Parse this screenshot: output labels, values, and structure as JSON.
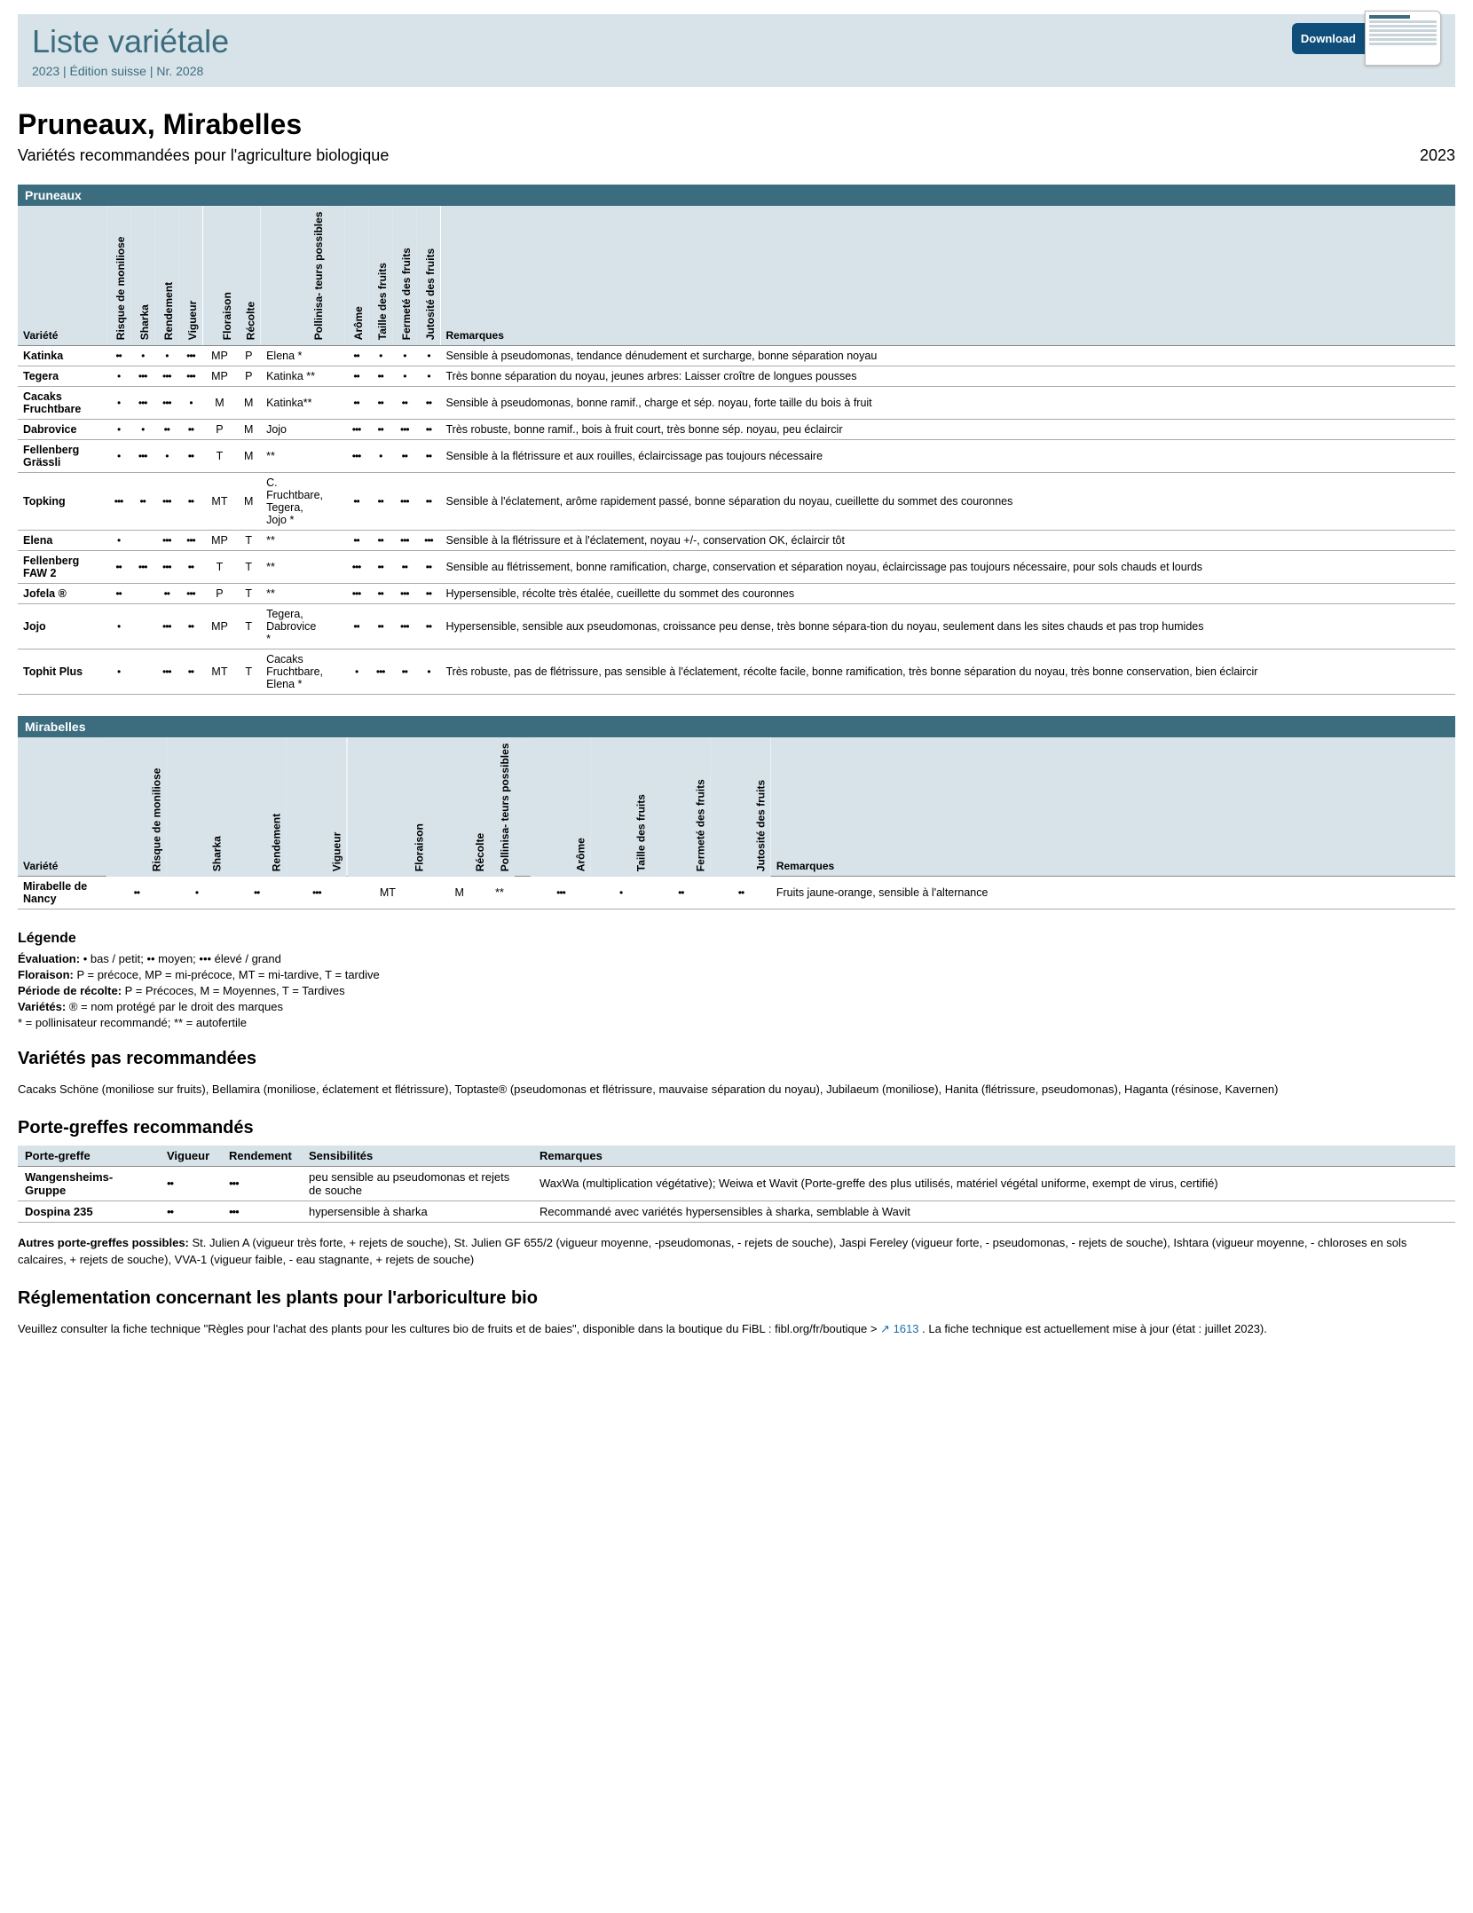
{
  "colors": {
    "band": "#3b6d7e",
    "header_bg": "#d7e3e9",
    "link": "#1a6ea8"
  },
  "header": {
    "title": "Liste variétale",
    "subtitle": "2023 | Édition suisse | Nr. 2028",
    "download_label": "Download"
  },
  "page": {
    "title": "Pruneaux, Mirabelles",
    "subtitle": "Variétés recommandées pour l'agriculture biologique",
    "year": "2023"
  },
  "columns": {
    "variety": "Variété",
    "moniliose": "Risque de moniliose",
    "sharka": "Sharka",
    "rendement": "Rendement",
    "vigueur": "Vigueur",
    "floraison": "Floraison",
    "recolte": "Récolte",
    "pollinisateurs": "Pollinisa-\nteurs possibles",
    "arome": "Arôme",
    "taille": "Taille des fruits",
    "fermete": "Fermeté des fruits",
    "jutosite": "Jutosité des fruits",
    "remarques": "Remarques"
  },
  "section1": {
    "title": "Pruneaux"
  },
  "section2": {
    "title": "Mirabelles"
  },
  "pruneaux": [
    {
      "v": "Katinka",
      "mon": "••",
      "sha": "•",
      "ren": "•",
      "vig": "•••",
      "flo": "MP",
      "rec": "P",
      "pol": "Elena *",
      "aro": "••",
      "tai": "•",
      "fer": "•",
      "jut": "•",
      "rem": "Sensible à pseudomonas, tendance dénudement et surcharge, bonne séparation noyau"
    },
    {
      "v": "Tegera",
      "mon": "•",
      "sha": "•••",
      "ren": "•••",
      "vig": "•••",
      "flo": "MP",
      "rec": "P",
      "pol": "Katinka **",
      "aro": "••",
      "tai": "••",
      "fer": "•",
      "jut": "•",
      "rem": "Très bonne séparation du noyau, jeunes arbres: Laisser croître de longues pousses"
    },
    {
      "v": "Cacaks Fruchtbare",
      "mon": "•",
      "sha": "•••",
      "ren": "•••",
      "vig": "•",
      "flo": "M",
      "rec": "M",
      "pol": "Katinka**",
      "aro": "••",
      "tai": "••",
      "fer": "••",
      "jut": "••",
      "rem": "Sensible à pseudomonas, bonne ramif., charge et sép. noyau, forte taille du bois à fruit"
    },
    {
      "v": "Dabrovice",
      "mon": "•",
      "sha": "•",
      "ren": "••",
      "vig": "••",
      "flo": "P",
      "rec": "M",
      "pol": "Jojo",
      "aro": "•••",
      "tai": "••",
      "fer": "•••",
      "jut": "••",
      "rem": "Très robuste, bonne ramif., bois à fruit court, très bonne sép. noyau, peu éclaircir"
    },
    {
      "v": "Fellenberg Grässli",
      "mon": "•",
      "sha": "•••",
      "ren": "•",
      "vig": "••",
      "flo": "T",
      "rec": "M",
      "pol": "**",
      "aro": "•••",
      "tai": "•",
      "fer": "••",
      "jut": "••",
      "rem": "Sensible à la flétrissure et aux rouilles, éclaircissage pas toujours nécessaire"
    },
    {
      "v": "Topking",
      "mon": "•••",
      "sha": "••",
      "ren": "•••",
      "vig": "••",
      "flo": "MT",
      "rec": "M",
      "pol": "C. Fruchtbare, Tegera, Jojo *",
      "aro": "••",
      "tai": "••",
      "fer": "•••",
      "jut": "••",
      "rem": "Sensible à l'éclatement, arôme rapidement passé, bonne séparation du noyau, cueillette du sommet des couronnes"
    },
    {
      "v": "Elena",
      "mon": "•",
      "sha": "",
      "ren": "•••",
      "vig": "•••",
      "flo": "MP",
      "rec": "T",
      "pol": "**",
      "aro": "••",
      "tai": "••",
      "fer": "•••",
      "jut": "•••",
      "rem": "Sensible à la flétrissure et à l'éclatement, noyau +/-, conservation OK, éclaircir tôt"
    },
    {
      "v": "Fellenberg FAW 2",
      "mon": "••",
      "sha": "•••",
      "ren": "•••",
      "vig": "••",
      "flo": "T",
      "rec": "T",
      "pol": "**",
      "aro": "•••",
      "tai": "••",
      "fer": "••",
      "jut": "••",
      "rem": "Sensible au flétrissement, bonne ramification, charge, conservation et séparation noyau, éclaircissage pas toujours nécessaire, pour sols chauds et lourds"
    },
    {
      "v": "Jofela ®",
      "mon": "••",
      "sha": "",
      "ren": "••",
      "vig": "•••",
      "flo": "P",
      "rec": "T",
      "pol": "**",
      "aro": "•••",
      "tai": "••",
      "fer": "•••",
      "jut": "••",
      "rem": "Hypersensible, récolte très étalée, cueillette du sommet des couronnes"
    },
    {
      "v": "Jojo",
      "mon": "•",
      "sha": "",
      "ren": "•••",
      "vig": "••",
      "flo": "MP",
      "rec": "T",
      "pol": "Tegera, Dabrovice *",
      "aro": "••",
      "tai": "••",
      "fer": "•••",
      "jut": "••",
      "rem": "Hypersensible, sensible aux pseudomonas, croissance peu dense, très bonne sépara-tion du noyau, seulement dans les sites chauds et pas trop humides"
    },
    {
      "v": "Tophit Plus",
      "mon": "•",
      "sha": "",
      "ren": "•••",
      "vig": "••",
      "flo": "MT",
      "rec": "T",
      "pol": "Cacaks Fruchtbare, Elena *",
      "aro": "•",
      "tai": "•••",
      "fer": "••",
      "jut": "•",
      "rem": "Très robuste, pas de flétrissure, pas sensible à l'éclatement, récolte facile, bonne ramification, très bonne séparation du noyau, très bonne conservation, bien éclaircir"
    }
  ],
  "mirabelles": [
    {
      "v": "Mirabelle de Nancy",
      "mon": "••",
      "sha": "•",
      "ren": "••",
      "vig": "•••",
      "flo": "MT",
      "rec": "M",
      "pol": "**",
      "aro": "•••",
      "tai": "•",
      "fer": "••",
      "jut": "••",
      "rem": "Fruits jaune-orange, sensible à l'alternance"
    }
  ],
  "legend": {
    "title": "Légende",
    "l1_b": "Évaluation:",
    "l1": " • bas / petit; •• moyen; ••• élevé / grand",
    "l2_b": "Floraison:",
    "l2": " P = précoce, MP = mi-précoce, MT = mi-tardive, T = tardive",
    "l3_b": "Période de récolte:",
    "l3": " P = Précoces, M = Moyennes, T = Tardives",
    "l4_b": "Variétés:",
    "l4": " ® = nom protégé par le droit des marques",
    "l5": "* = pollinisateur recommandé; ** = autofertile"
  },
  "not_recommended": {
    "title": "Variétés pas recommandées",
    "text": "Cacaks Schöne (moniliose sur fruits), Bellamira (moniliose, éclatement et flétrissure), Toptaste® (pseudomonas et flétrissure, mauvaise séparation du noyau), Jubilaeum (moniliose), Hanita (flétrissure, pseudomonas), Haganta (résinose, Kavernen)"
  },
  "rootstocks": {
    "title": "Porte-greffes recommandés",
    "columns": {
      "pg": "Porte-greffe",
      "vig": "Vigueur",
      "ren": "Rendement",
      "sen": "Sensibilités",
      "rem": "Remarques"
    },
    "rows": [
      {
        "pg": "Wangensheims-Gruppe",
        "vig": "••",
        "ren": "•••",
        "sen": "peu sensible au pseudomonas et rejets de souche",
        "rem": "WaxWa (multiplication végétative); Weiwa et Wavit (Porte-greffe des plus utilisés, matériel végétal uniforme, exempt de virus, certifié)"
      },
      {
        "pg": "Dospina 235",
        "vig": "••",
        "ren": "•••",
        "sen": "hypersensible à sharka",
        "rem": "Recommandé avec variétés hypersensibles à sharka, semblable à Wavit"
      }
    ],
    "others_b": "Autres porte-greffes possibles:",
    "others": " St. Julien A (vigueur très forte, + rejets de souche), St. Julien GF 655/2 (vigueur moyenne, -pseudomonas, - rejets de souche), Jaspi Fereley (vigueur forte, - pseudomonas, - rejets de souche), Ishtara (vigueur moyenne, - chloroses en sols calcaires, + rejets de souche), VVA-1 (vigueur faible, - eau stagnante, + rejets de souche)"
  },
  "regulation": {
    "title": "Réglementation concernant les plants pour l'arboriculture bio",
    "text_pre": "Veuillez consulter la fiche technique \"Règles pour l'achat des plants pour les cultures bio de fruits et de baies\", disponible dans la boutique du FiBL : fibl.org/fr/boutique > ",
    "link_text": "1613",
    "text_post": ". La fiche technique est actuellement mise à jour (état : juillet 2023)."
  }
}
